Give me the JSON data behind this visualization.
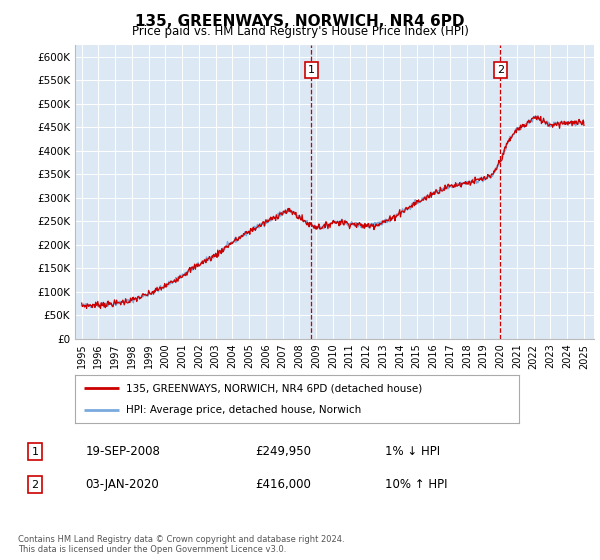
{
  "title": "135, GREENWAYS, NORWICH, NR4 6PD",
  "subtitle": "Price paid vs. HM Land Registry's House Price Index (HPI)",
  "ylabel_ticks": [
    "£0",
    "£50K",
    "£100K",
    "£150K",
    "£200K",
    "£250K",
    "£300K",
    "£350K",
    "£400K",
    "£450K",
    "£500K",
    "£550K",
    "£600K"
  ],
  "ytick_values": [
    0,
    50000,
    100000,
    150000,
    200000,
    250000,
    300000,
    350000,
    400000,
    450000,
    500000,
    550000,
    600000
  ],
  "ylim": [
    0,
    625000
  ],
  "background_color": "#dce9f5",
  "grid_color": "#ffffff",
  "hpi_line_color": "#7aaadd",
  "price_line_color": "#cc0000",
  "dashed_line_color": "#cc0000",
  "marker1_x": 2008.72,
  "marker1_y": 249950,
  "marker1_label": "1",
  "marker1_date": "19-SEP-2008",
  "marker1_price": "£249,950",
  "marker1_hpi": "1% ↓ HPI",
  "marker2_x": 2020.01,
  "marker2_y": 416000,
  "marker2_label": "2",
  "marker2_date": "03-JAN-2020",
  "marker2_price": "£416,000",
  "marker2_hpi": "10% ↑ HPI",
  "legend_line1": "135, GREENWAYS, NORWICH, NR4 6PD (detached house)",
  "legend_line2": "HPI: Average price, detached house, Norwich",
  "footnote": "Contains HM Land Registry data © Crown copyright and database right 2024.\nThis data is licensed under the Open Government Licence v3.0.",
  "xtick_years": [
    1995,
    1996,
    1997,
    1998,
    1999,
    2000,
    2001,
    2002,
    2003,
    2004,
    2005,
    2006,
    2007,
    2008,
    2009,
    2010,
    2011,
    2012,
    2013,
    2014,
    2015,
    2016,
    2017,
    2018,
    2019,
    2020,
    2021,
    2022,
    2023,
    2024,
    2025
  ],
  "hpi_anchors_years": [
    1995,
    1997,
    1998,
    1999,
    2000,
    2001,
    2002,
    2003,
    2004,
    2005,
    2006,
    2007,
    2007.5,
    2008,
    2008.5,
    2009,
    2009.5,
    2010,
    2010.5,
    2011,
    2011.5,
    2012,
    2012.5,
    2013,
    2013.5,
    2014,
    2014.5,
    2015,
    2015.5,
    2016,
    2016.5,
    2017,
    2017.5,
    2018,
    2018.5,
    2019,
    2019.5,
    2020,
    2020.25,
    2020.5,
    2021,
    2021.5,
    2022,
    2022.5,
    2023,
    2023.5,
    2024,
    2024.5,
    2025
  ],
  "hpi_anchors_vals": [
    70000,
    75000,
    82000,
    95000,
    112000,
    135000,
    158000,
    178000,
    205000,
    228000,
    248000,
    268000,
    272000,
    258000,
    245000,
    238000,
    238000,
    248000,
    248000,
    245000,
    242000,
    240000,
    242000,
    248000,
    255000,
    268000,
    278000,
    290000,
    298000,
    310000,
    318000,
    325000,
    328000,
    332000,
    335000,
    340000,
    345000,
    378000,
    400000,
    420000,
    445000,
    455000,
    470000,
    465000,
    455000,
    458000,
    460000,
    458000,
    460000
  ]
}
